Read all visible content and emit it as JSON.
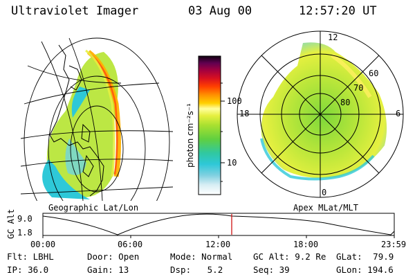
{
  "header": {
    "title": "Ultraviolet Imager",
    "date": "03 Aug 00",
    "time": "12:57:20 UT"
  },
  "panels": {
    "geographic_caption": "Geographic Lat/Lon",
    "apex_caption": "Apex MLat/MLT"
  },
  "colorbar": {
    "axis_label": "photon cm⁻²s⁻¹",
    "ticks": [
      "100",
      "10"
    ]
  },
  "polar": {
    "mlt_labels": [
      "12",
      "18",
      "6",
      "0"
    ],
    "lat_labels": [
      "60",
      "70",
      "80"
    ]
  },
  "timeline": {
    "y_label": "GC Alt",
    "y_ticks": [
      "9.0",
      "1.8"
    ],
    "x_ticks": [
      "00:00",
      "06:00",
      "12:00",
      "18:00",
      "23:59"
    ],
    "marker_time": "12:57:20"
  },
  "info": {
    "flt_label": "Flt:",
    "flt_value": "LBHL",
    "ip_label": "IP:",
    "ip_value": "36.0",
    "door_label": "Door:",
    "door_value": "Open",
    "gain_label": "Gain:",
    "gain_value": "13",
    "mode_label": "Mode:",
    "mode_value": "Normal",
    "dsp_label": "Dsp:",
    "dsp_value": "5.2",
    "gcalt_label": "GC Alt:",
    "gcalt_value": "9.2 Re",
    "seq_label": "Seq:",
    "seq_value": "39",
    "glat_label": "GLat:",
    "glat_value": "79.9",
    "glon_label": "GLon:",
    "glon_value": "194.6"
  },
  "colors": {
    "marker": "#d01010",
    "grid": "#000000",
    "low": "#2ec8d8",
    "mid": "#b8e63a",
    "high": "#ffe000"
  }
}
